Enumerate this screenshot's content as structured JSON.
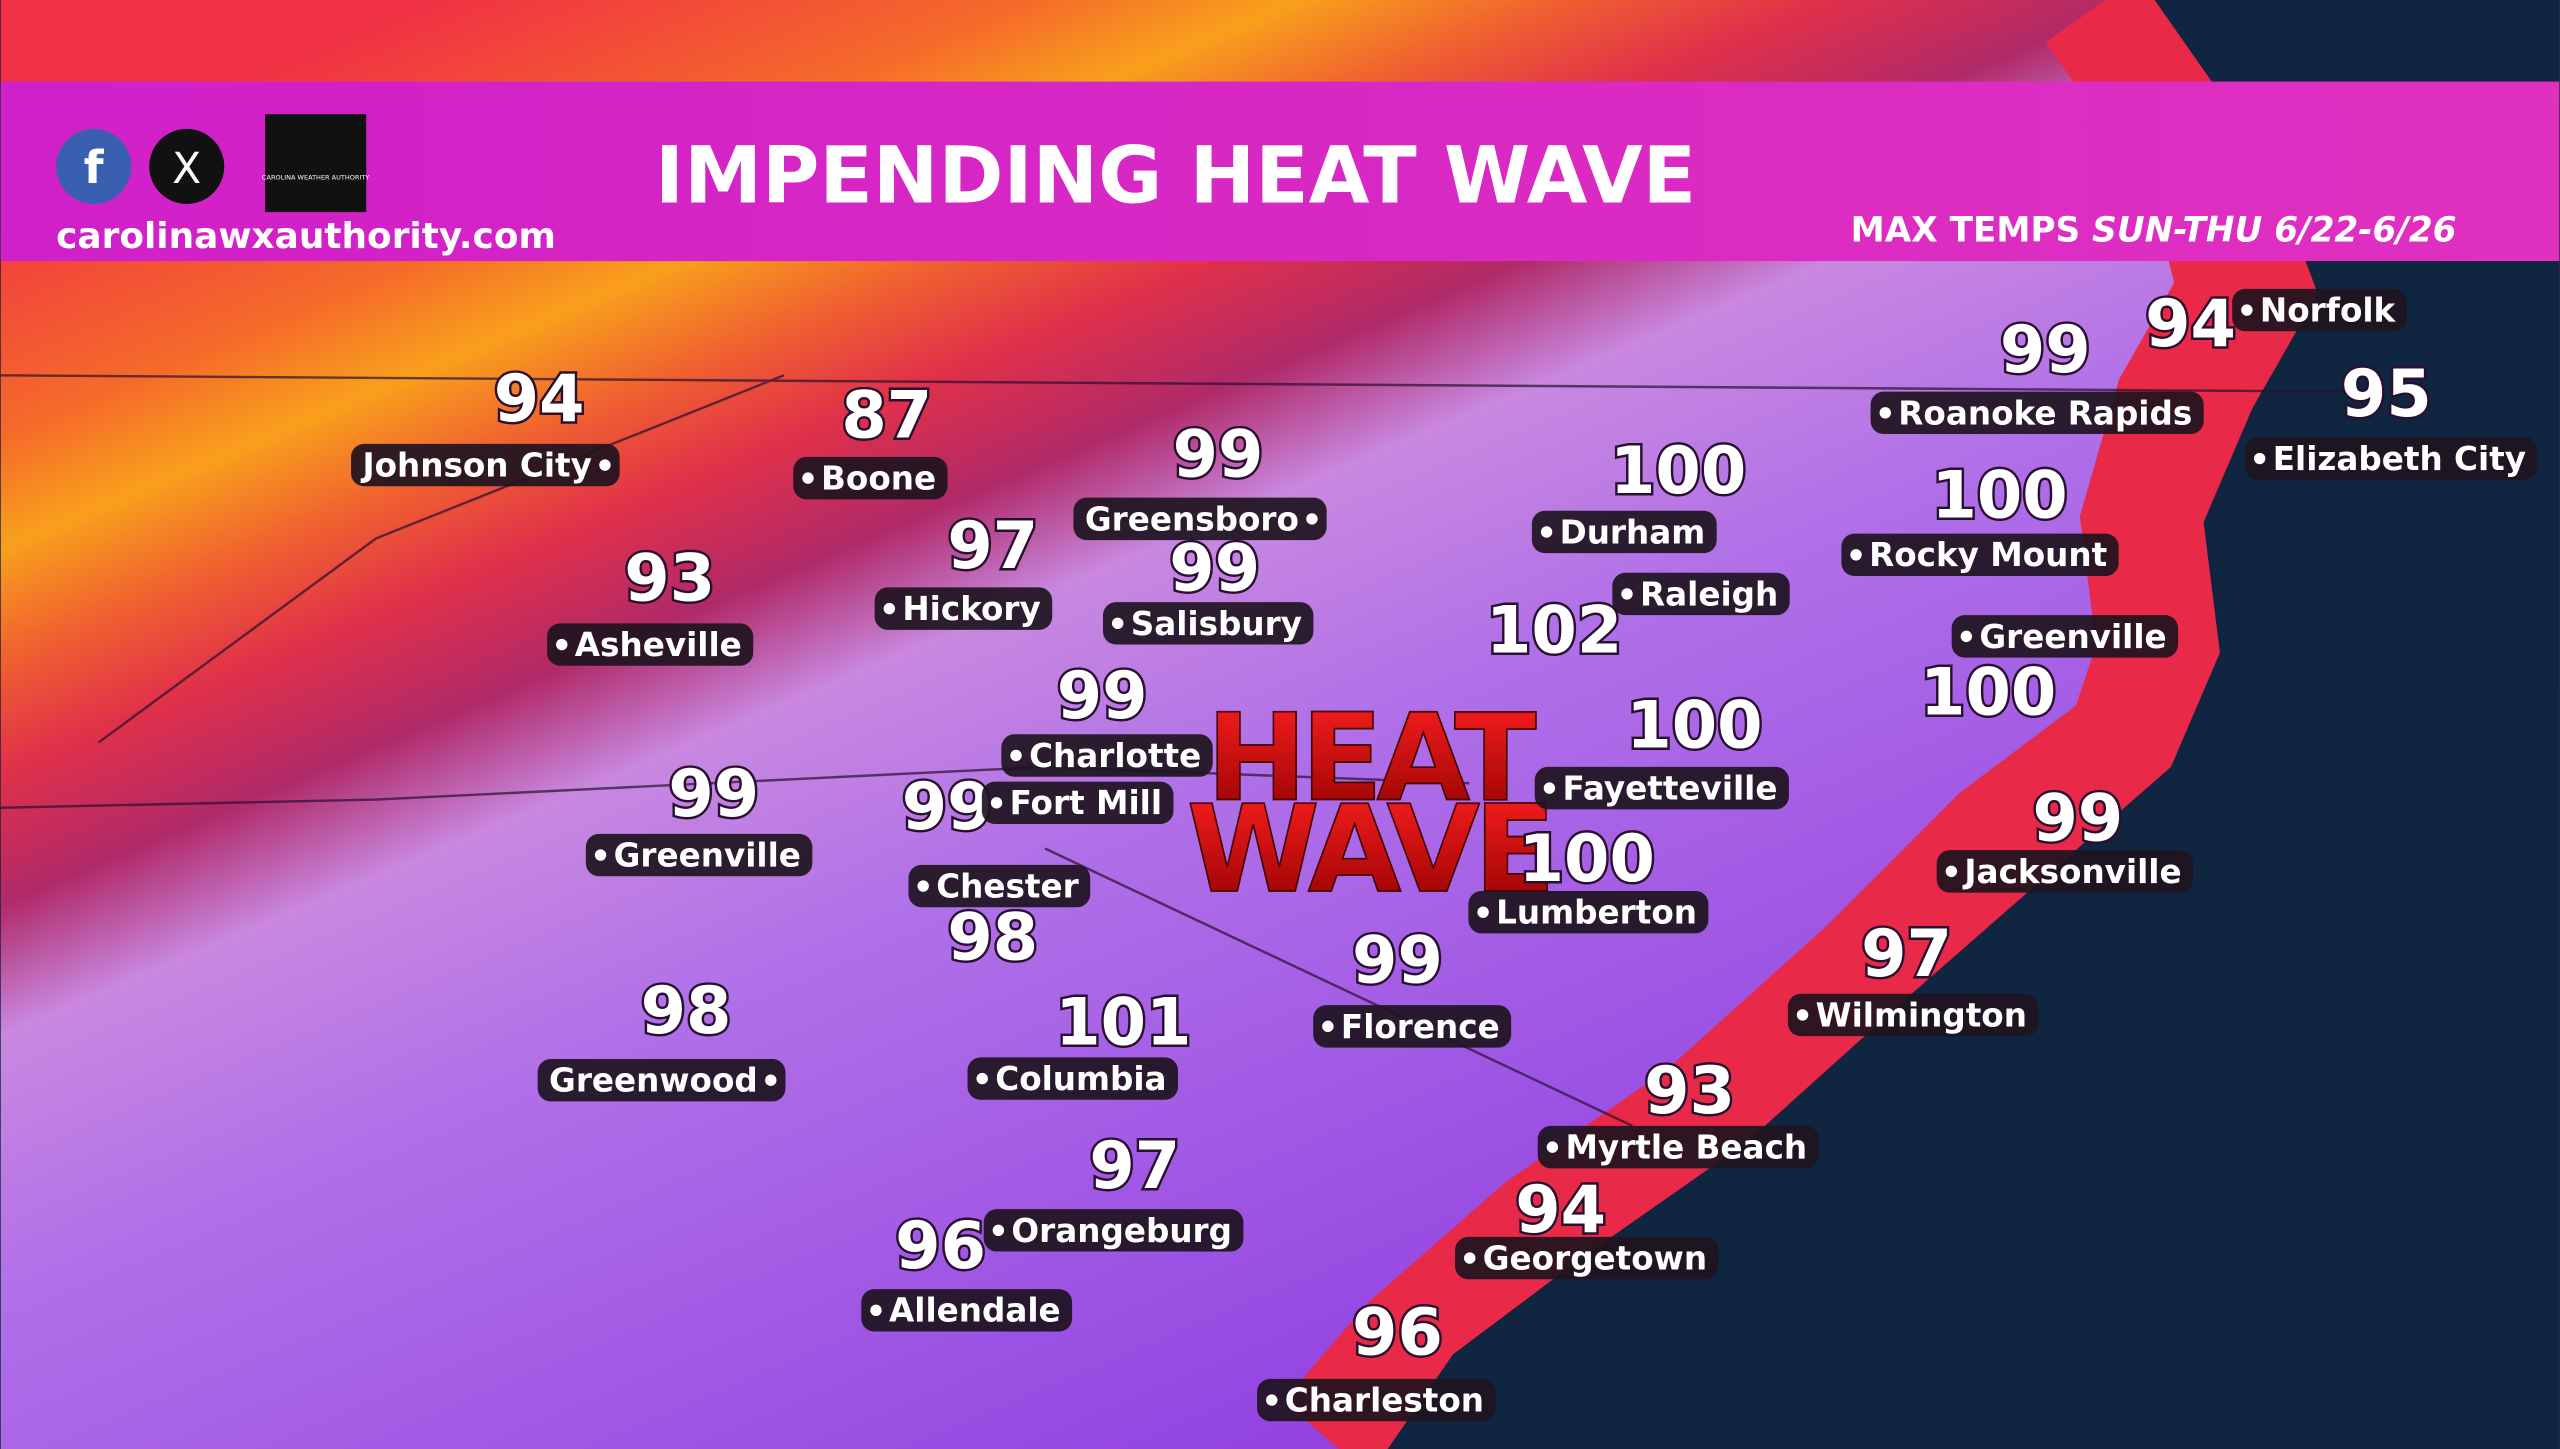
{
  "header": {
    "title": "IMPENDING HEAT WAVE",
    "website": "carolinawxauthority.com",
    "subtitle_lead": "MAX TEMPS",
    "subtitle_dates": "SUN-THU 6/22-6/26",
    "logo_text": "CAROLINA WEATHER AUTHORITY"
  },
  "map": {
    "banner": [
      "HEAT",
      "WAVE"
    ],
    "cities": [
      {
        "name": "Johnson City",
        "temp": "94"
      },
      {
        "name": "Boone",
        "temp": "87"
      },
      {
        "name": "Asheville",
        "temp": "93"
      },
      {
        "name": "Hickory",
        "temp": "97"
      },
      {
        "name": "Greensboro",
        "temp": "99"
      },
      {
        "name": "Salisbury",
        "temp": "99"
      },
      {
        "name": "Charlotte",
        "temp": "99"
      },
      {
        "name": "Fort Mill",
        "temp": "99"
      },
      {
        "name": "Greenville",
        "temp": "99"
      },
      {
        "name": "Chester",
        "temp": "98"
      },
      {
        "name": "Greenwood",
        "temp": "98"
      },
      {
        "name": "Columbia",
        "temp": "101"
      },
      {
        "name": "Orangeburg",
        "temp": "97"
      },
      {
        "name": "Allendale",
        "temp": "96"
      },
      {
        "name": "Charleston",
        "temp": "96"
      },
      {
        "name": "Georgetown",
        "temp": "94"
      },
      {
        "name": "Myrtle Beach",
        "temp": "93"
      },
      {
        "name": "Florence",
        "temp": "99"
      },
      {
        "name": "Lumberton",
        "temp": "100"
      },
      {
        "name": "Fayetteville",
        "temp": "100"
      },
      {
        "name": "Raleigh",
        "temp": "102"
      },
      {
        "name": "Durham",
        "temp": "100"
      },
      {
        "name": "Rocky Mount",
        "temp": "100"
      },
      {
        "name": "Greenville",
        "temp": "100"
      },
      {
        "name": "Roanoke Rapids",
        "temp": "99"
      },
      {
        "name": "Norfolk",
        "temp": "94"
      },
      {
        "name": "Elizabeth City",
        "temp": "95"
      },
      {
        "name": "Jacksonville",
        "temp": "99"
      },
      {
        "name": "Wilmington",
        "temp": "97"
      }
    ]
  }
}
